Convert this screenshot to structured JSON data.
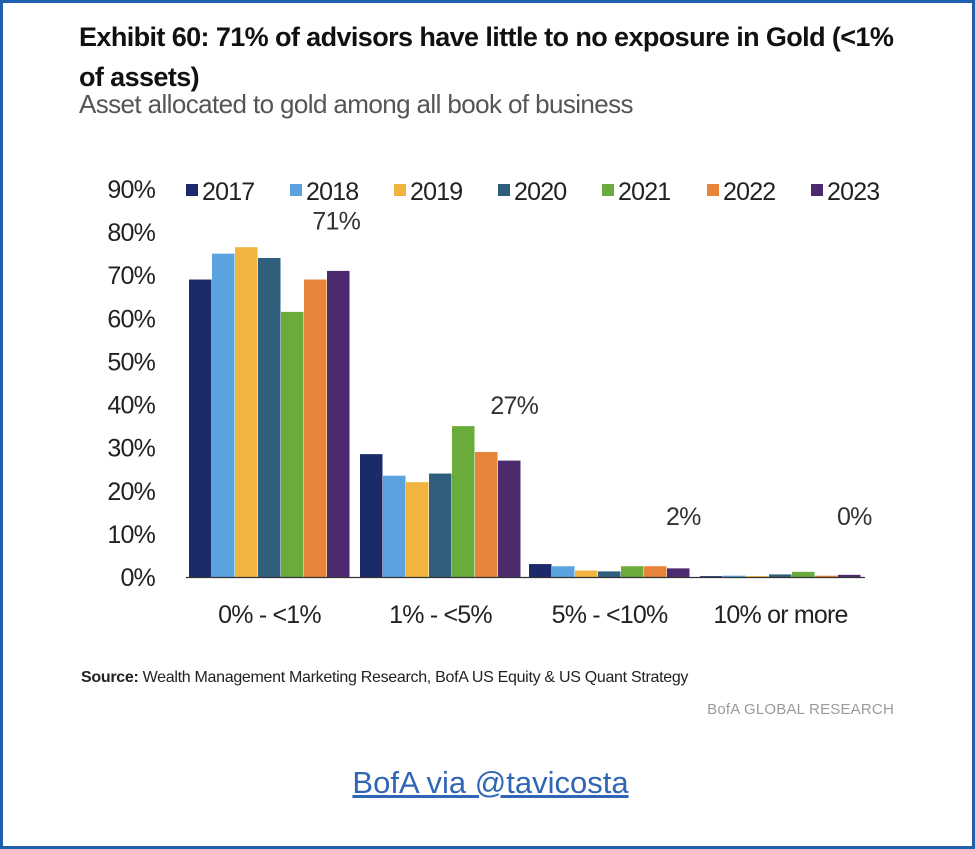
{
  "exhibit": {
    "title": "Exhibit 60: 71% of advisors have little to no exposure in Gold (<1% of assets)",
    "subtitle": "Asset allocated to gold among all book of business"
  },
  "source": {
    "label": "Source:",
    "text": "Wealth Management Marketing Research, BofA US Equity & US Quant Strategy"
  },
  "brand": "BofA GLOBAL RESEARCH",
  "credit": "BofA via @tavicosta",
  "chart_data": {
    "type": "bar",
    "title": "",
    "xlabel": "",
    "ylabel": "",
    "ylim": [
      0,
      90
    ],
    "yticks": [
      0,
      10,
      20,
      30,
      40,
      50,
      60,
      70,
      80,
      90
    ],
    "ytick_labels": [
      "0%",
      "10%",
      "20%",
      "30%",
      "40%",
      "50%",
      "60%",
      "70%",
      "80%",
      "90%"
    ],
    "legend_position": "top",
    "categories": [
      "0% - <1%",
      "1% - <5%",
      "5% - <10%",
      "10% or more"
    ],
    "series": [
      {
        "name": "2017",
        "color": "#1b2a6b",
        "values": [
          69,
          28.5,
          3,
          0.2
        ]
      },
      {
        "name": "2018",
        "color": "#5aa3df",
        "values": [
          75,
          23.5,
          2.5,
          0.3
        ]
      },
      {
        "name": "2019",
        "color": "#f0b43f",
        "values": [
          76.5,
          22,
          1.5,
          0.2
        ]
      },
      {
        "name": "2020",
        "color": "#2f5f7d",
        "values": [
          74,
          24,
          1.3,
          0.6
        ]
      },
      {
        "name": "2021",
        "color": "#6aac3c",
        "values": [
          61.5,
          35,
          2.5,
          1.2
        ]
      },
      {
        "name": "2022",
        "color": "#e7843a",
        "values": [
          69,
          29,
          2.5,
          0.3
        ]
      },
      {
        "name": "2023",
        "color": "#4b2a6e",
        "values": [
          71,
          27,
          2,
          0.5
        ]
      }
    ],
    "annotations": [
      {
        "category": "0% - <1%",
        "text": "71%"
      },
      {
        "category": "1% - <5%",
        "text": "27%"
      },
      {
        "category": "5% - <10%",
        "text": "2%"
      },
      {
        "category": "10% or more",
        "text": "0%"
      }
    ]
  }
}
